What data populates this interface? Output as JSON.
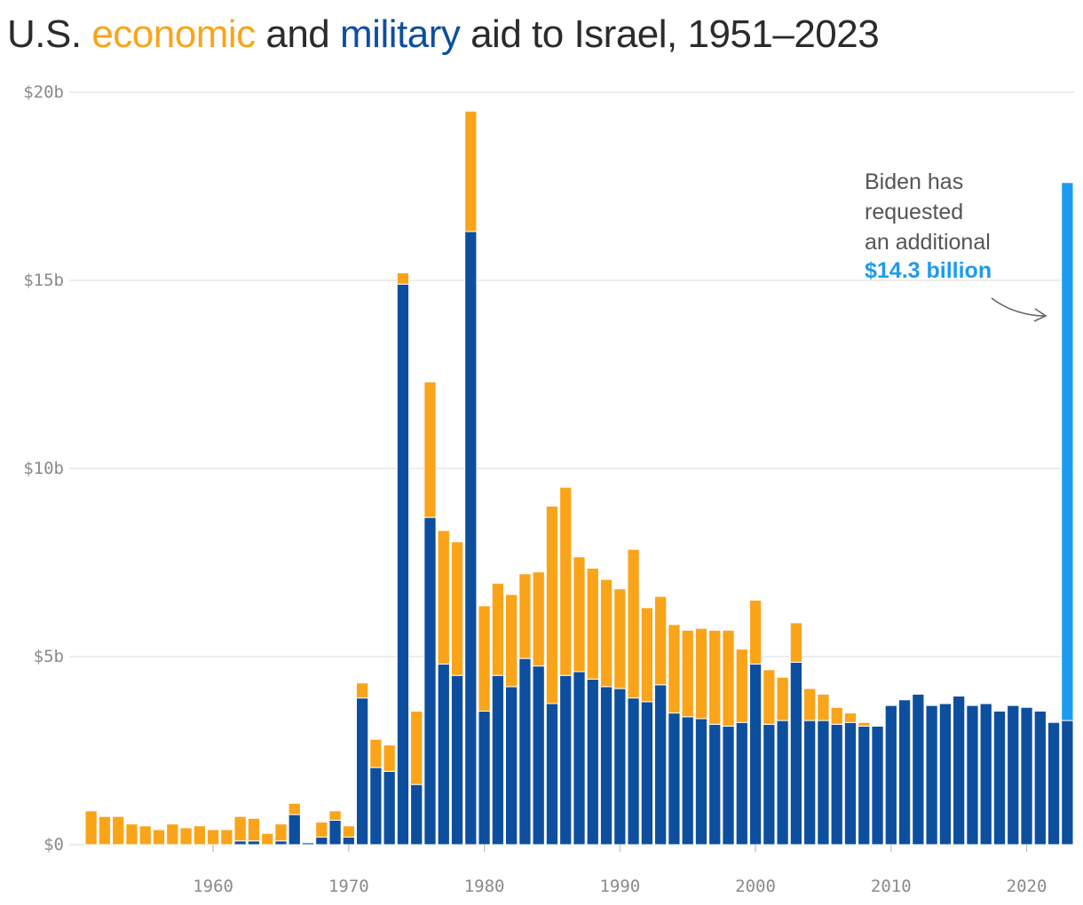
{
  "title": {
    "prefix": "U.S.",
    "economic_word": "economic",
    "middle": "and",
    "military_word": "military",
    "suffix": "aid to Israel, 1951–2023"
  },
  "colors": {
    "economic": "#faa41a",
    "military": "#0d4f9e",
    "requested": "#1d9bf0",
    "grid": "#e2e2e2",
    "tick_text": "#8a8a8a"
  },
  "annotation": {
    "lines": [
      "Biden has",
      "requested",
      "an additional"
    ],
    "highlight": "$14.3 billion"
  },
  "chart_data": {
    "type": "bar",
    "stacked": true,
    "x": [
      1951,
      1952,
      1953,
      1954,
      1955,
      1956,
      1957,
      1958,
      1959,
      1960,
      1961,
      1962,
      1963,
      1964,
      1965,
      1966,
      1967,
      1968,
      1969,
      1970,
      1971,
      1972,
      1973,
      1974,
      1975,
      1976,
      1977,
      1978,
      1979,
      1980,
      1981,
      1982,
      1983,
      1984,
      1985,
      1986,
      1987,
      1988,
      1989,
      1990,
      1991,
      1992,
      1993,
      1994,
      1995,
      1996,
      1997,
      1998,
      1999,
      2000,
      2001,
      2002,
      2003,
      2004,
      2005,
      2006,
      2007,
      2008,
      2009,
      2010,
      2011,
      2012,
      2013,
      2014,
      2015,
      2016,
      2017,
      2018,
      2019,
      2020,
      2021,
      2022,
      2023
    ],
    "series": [
      {
        "key": "military",
        "values": [
          0,
          0,
          0,
          0,
          0,
          0,
          0,
          0,
          0,
          0,
          0,
          0.1,
          0.1,
          0,
          0.1,
          0.8,
          0.05,
          0.2,
          0.65,
          0.2,
          3.9,
          2.05,
          1.95,
          14.9,
          1.6,
          8.7,
          4.8,
          4.5,
          16.3,
          3.55,
          4.5,
          4.2,
          4.95,
          4.75,
          3.75,
          4.5,
          4.6,
          4.4,
          4.2,
          4.15,
          3.9,
          3.8,
          4.25,
          3.5,
          3.4,
          3.35,
          3.2,
          3.15,
          3.25,
          4.8,
          3.2,
          3.3,
          4.85,
          3.3,
          3.3,
          3.2,
          3.25,
          3.15,
          3.15,
          3.7,
          3.85,
          4.0,
          3.7,
          3.75,
          3.95,
          3.7,
          3.75,
          3.55,
          3.7,
          3.65,
          3.55,
          3.25,
          3.3
        ]
      },
      {
        "key": "economic",
        "values": [
          0.9,
          0.75,
          0.75,
          0.55,
          0.5,
          0.4,
          0.55,
          0.45,
          0.5,
          0.4,
          0.4,
          0.65,
          0.6,
          0.3,
          0.45,
          0.3,
          0,
          0.4,
          0.25,
          0.3,
          0.4,
          0.75,
          0.7,
          0.3,
          1.95,
          3.6,
          3.55,
          3.55,
          3.2,
          2.8,
          2.45,
          2.45,
          2.25,
          2.5,
          5.25,
          5.0,
          3.05,
          2.95,
          2.85,
          2.65,
          3.95,
          2.5,
          2.35,
          2.35,
          2.3,
          2.4,
          2.5,
          2.55,
          1.95,
          1.7,
          1.45,
          1.15,
          1.05,
          0.85,
          0.7,
          0.45,
          0.25,
          0.1,
          0,
          0,
          0,
          0,
          0,
          0,
          0,
          0,
          0,
          0,
          0,
          0,
          0,
          0,
          0
        ]
      },
      {
        "key": "requested",
        "values": [
          0,
          0,
          0,
          0,
          0,
          0,
          0,
          0,
          0,
          0,
          0,
          0,
          0,
          0,
          0,
          0,
          0,
          0,
          0,
          0,
          0,
          0,
          0,
          0,
          0,
          0,
          0,
          0,
          0,
          0,
          0,
          0,
          0,
          0,
          0,
          0,
          0,
          0,
          0,
          0,
          0,
          0,
          0,
          0,
          0,
          0,
          0,
          0,
          0,
          0,
          0,
          0,
          0,
          0,
          0,
          0,
          0,
          0,
          0,
          0,
          0,
          0,
          0,
          0,
          0,
          0,
          0,
          0,
          0,
          0,
          0,
          0,
          14.3
        ]
      }
    ],
    "ylim": [
      0,
      20
    ],
    "yticks": [
      {
        "value": 0,
        "label": "$0"
      },
      {
        "value": 5,
        "label": "$5b"
      },
      {
        "value": 10,
        "label": "$10b"
      },
      {
        "value": 15,
        "label": "$15b"
      },
      {
        "value": 20,
        "label": "$20b"
      }
    ],
    "xticks": [
      {
        "value": 1960,
        "label": "1960"
      },
      {
        "value": 1970,
        "label": "1970"
      },
      {
        "value": 1980,
        "label": "1980"
      },
      {
        "value": 1990,
        "label": "1990"
      },
      {
        "value": 2000,
        "label": "2000"
      },
      {
        "value": 2010,
        "label": "2010"
      },
      {
        "value": 2020,
        "label": "2020"
      }
    ],
    "grid": true,
    "legend": "colored words in title"
  }
}
